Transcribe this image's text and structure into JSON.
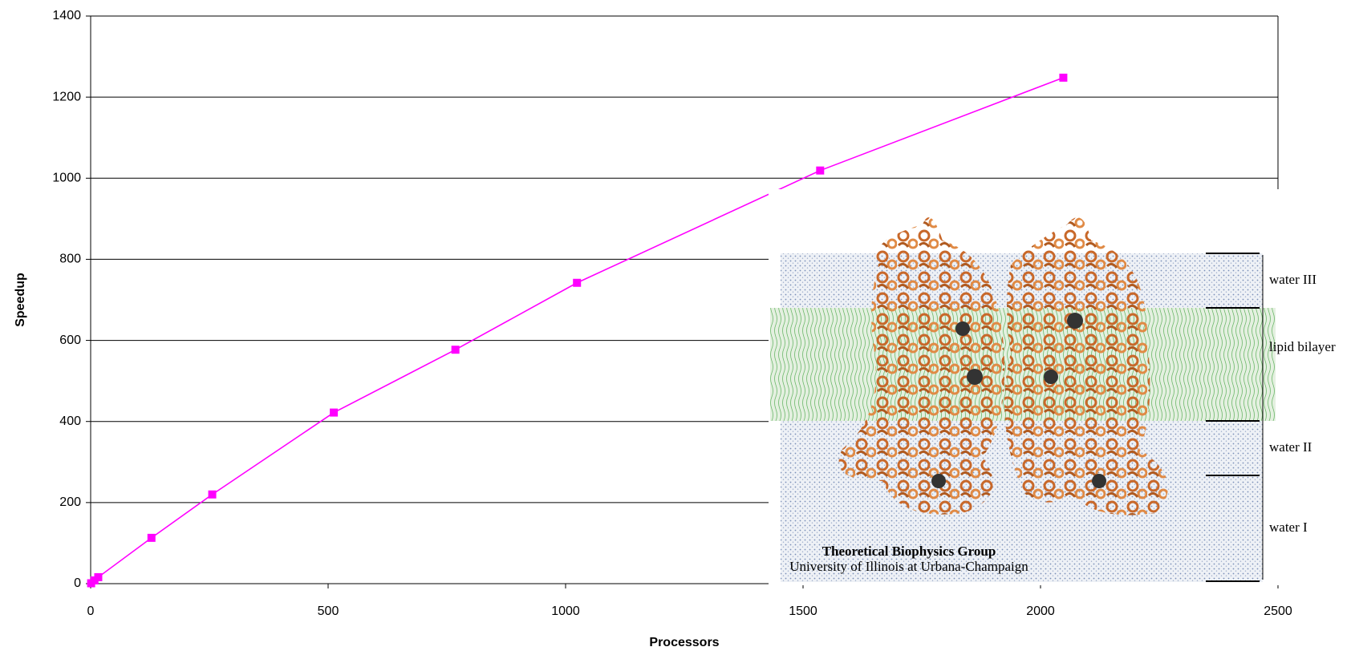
{
  "chart_data": {
    "type": "line",
    "x_label": "Processors",
    "y_label": "Speedup",
    "series": [
      {
        "name": "Speedup",
        "color": "#ff00ff",
        "x": [
          1,
          8,
          16,
          128,
          256,
          512,
          768,
          1024,
          1536,
          2048
        ],
        "values": [
          1,
          8,
          16,
          113,
          220,
          422,
          577,
          742,
          1019,
          1248
        ]
      }
    ],
    "xlim": [
      0,
      2500
    ],
    "xticks": [
      0,
      500,
      1000,
      1500,
      2000,
      2500
    ],
    "ylim": [
      0,
      1400
    ],
    "yticks": [
      0,
      200,
      400,
      600,
      800,
      1000,
      1200,
      1400
    ],
    "grid": true,
    "inset_labels": [
      "water III",
      "lipid bilayer",
      "water II",
      "water I"
    ],
    "inset_credit": [
      "Theoretical Biophysics Group",
      "University of Illinois at Urbana-Champaign"
    ]
  }
}
